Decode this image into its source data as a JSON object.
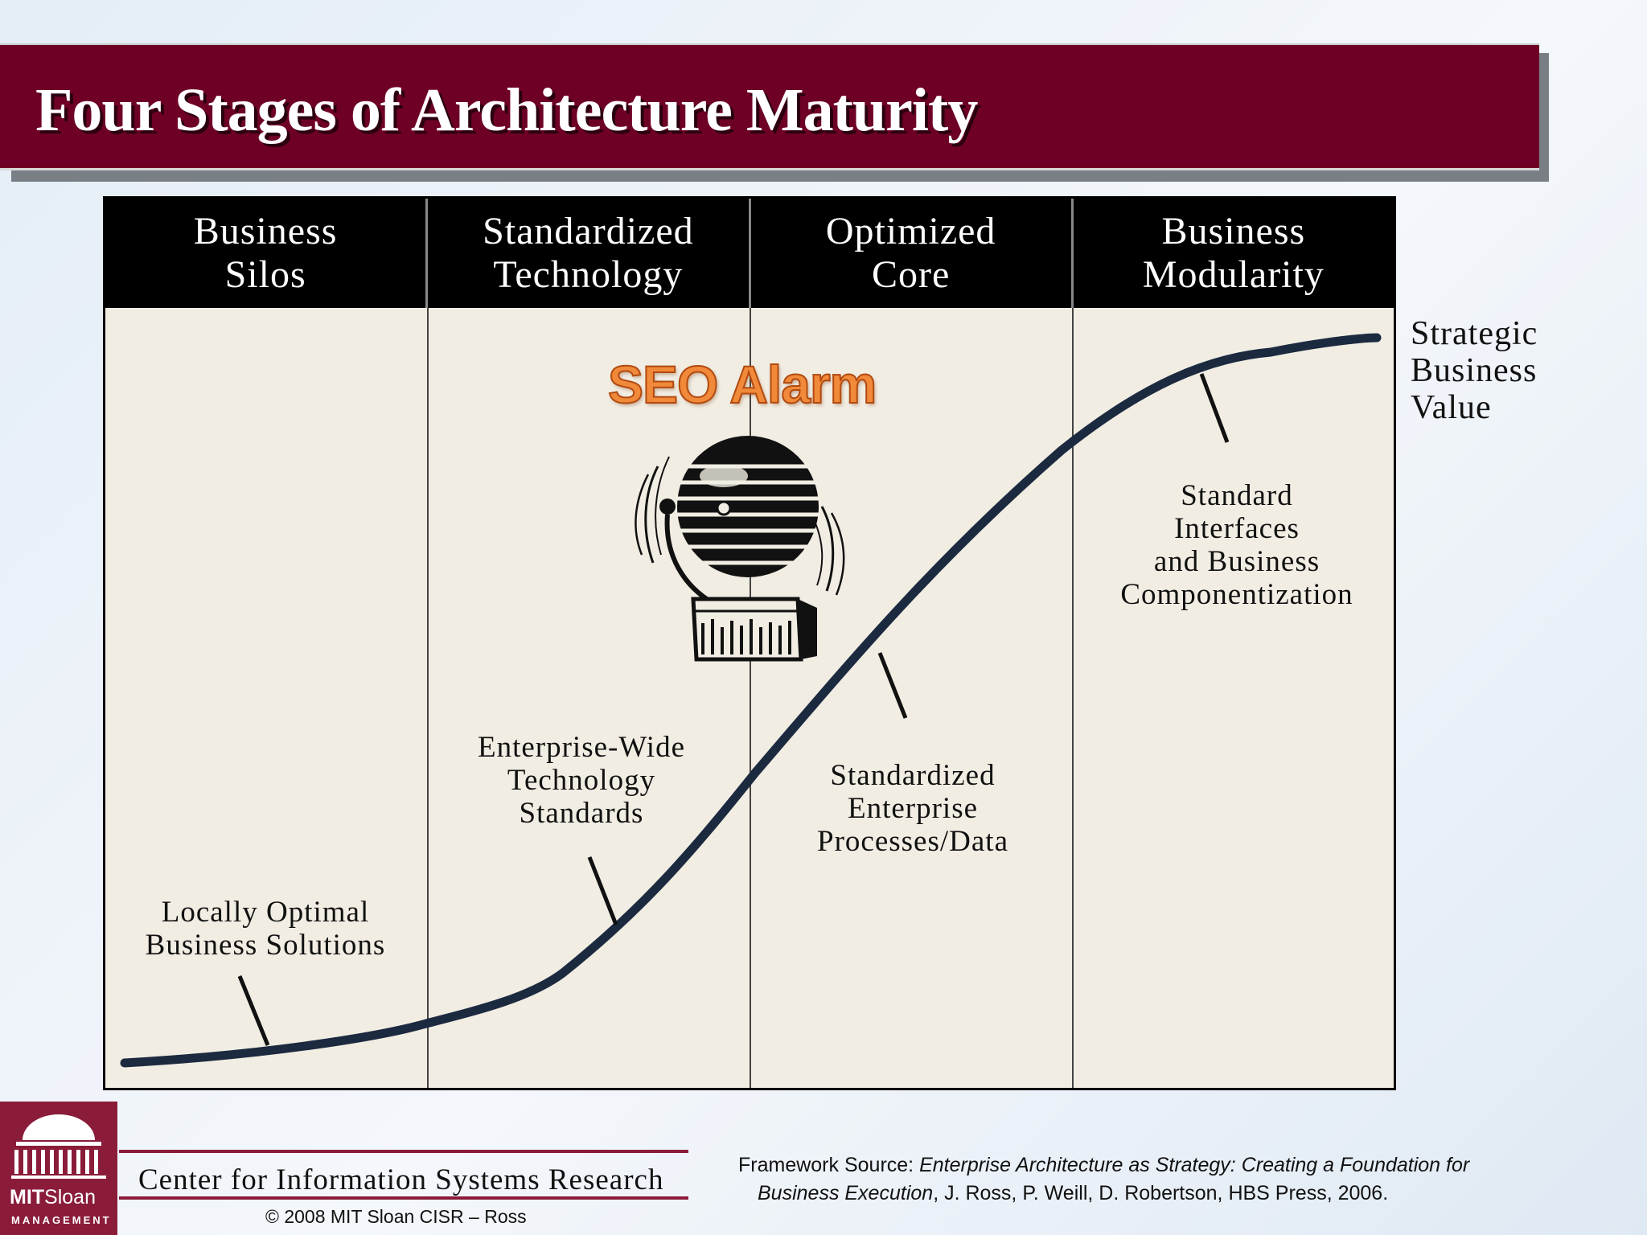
{
  "title": "Four Stages of Architecture Maturity",
  "stages": [
    {
      "name": "Business\nSilos"
    },
    {
      "name": "Standardized\nTechnology"
    },
    {
      "name": "Optimized\nCore"
    },
    {
      "name": "Business\nModularity"
    }
  ],
  "annotations": [
    {
      "text": "Locally Optimal\nBusiness Solutions"
    },
    {
      "text": "Enterprise-Wide\nTechnology\nStandards"
    },
    {
      "text": "Standardized\nEnterprise\nProcesses/Data"
    },
    {
      "text": "Standard\nInterfaces\nand Business\nComponentization"
    }
  ],
  "axis_label": "Strategic\nBusiness\nValue",
  "overlay": {
    "text": "SEO Alarm",
    "icon": "alarm-bell-icon"
  },
  "footer": {
    "logo_main_bold": "MIT",
    "logo_main_light": "Sloan",
    "logo_sub": "MANAGEMENT",
    "center_name": "Center for Information Systems Research",
    "copyright": "© 2008 MIT Sloan CISR – Ross",
    "source_prefix": "Framework Source: ",
    "source_title_1": "Enterprise Architecture as Strategy: Creating a Foundation for",
    "source_title_2": "Business Execution",
    "source_authors": ",  J. Ross, P. Weill, D. Robertson, HBS Press, 2006."
  },
  "colors": {
    "title_bar": "#6e0026",
    "curve": "#1c2a40",
    "panel": "#f1ede3",
    "overlay_text": "#f08a3a"
  }
}
